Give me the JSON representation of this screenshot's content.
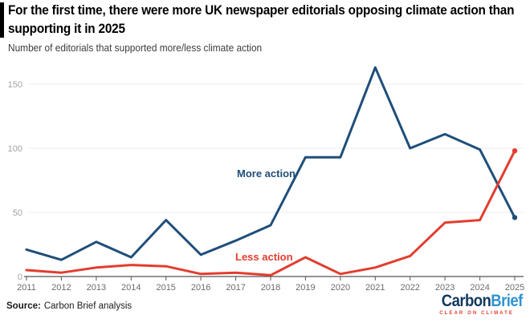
{
  "header": {
    "title": "For the first time, there were more UK newspaper editorials opposing climate action than supporting it in 2025",
    "subtitle": "Number of editorials that supported more/less climate action"
  },
  "chart_data": {
    "type": "line",
    "x": [
      2011,
      2012,
      2013,
      2014,
      2015,
      2016,
      2017,
      2018,
      2019,
      2020,
      2021,
      2022,
      2023,
      2024,
      2025
    ],
    "series": [
      {
        "name": "More action",
        "color": "#1f4e79",
        "values": [
          21,
          13,
          27,
          15,
          44,
          17,
          28,
          40,
          93,
          93,
          163,
          100,
          111,
          99,
          46
        ]
      },
      {
        "name": "Less action",
        "color": "#e23d2e",
        "values": [
          5,
          3,
          7,
          9,
          8,
          2,
          3,
          1,
          15,
          2,
          7,
          16,
          42,
          44,
          98
        ]
      }
    ],
    "yticks": [
      0,
      50,
      100,
      150
    ],
    "ylim": [
      0,
      170
    ],
    "grid": "horizontal",
    "legend_position": "inline-labels",
    "endpoint_markers": true,
    "colors": {
      "grid": "#ededed",
      "axis": "#555555",
      "ytick_label": "#a3a3a3",
      "xtick_label": "#6b6b6b"
    }
  },
  "footer": {
    "source_label": "Source:",
    "source_text": "Carbon Brief analysis",
    "logo": {
      "part1": "Carbon",
      "part2": "Brief",
      "tagline": "CLEAR ON CLIMATE",
      "navy": "#12395e",
      "blue": "#2e93cf",
      "red": "#e23d2e"
    }
  }
}
